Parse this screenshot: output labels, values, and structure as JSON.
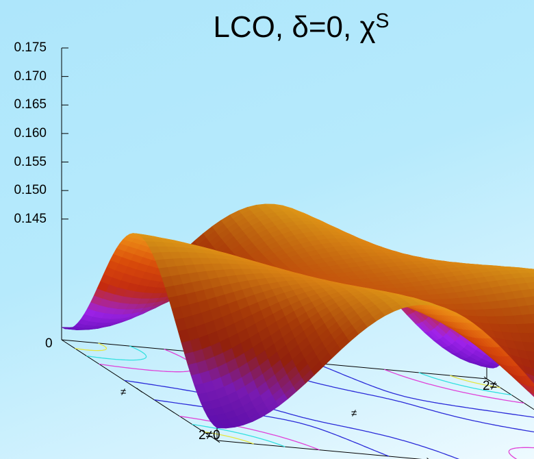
{
  "chart_data": {
    "type": "surface3d",
    "title": "LCO, δ=0, χ",
    "title_super": "S",
    "z_ticks": [
      "0.175",
      "0.170",
      "0.165",
      "0.160",
      "0.155",
      "0.150",
      "0.145"
    ],
    "base_z_label": "0",
    "x_ticks": [
      "≠",
      "2≠0"
    ],
    "y_ticks": [
      "≠",
      "2≠"
    ],
    "zlim": [
      0.135,
      0.175
    ],
    "surface": "chi_s(kx, ky) peaked at (π, π) with max ≈ 0.172, min ≈ 0.137 along the (0,0)-(2π,2π) diagonal and edge saddles near 0.148",
    "contour_levels": [
      {
        "level": 0.139,
        "color": "#e6e640"
      },
      {
        "level": 0.143,
        "color": "#33e0e0"
      },
      {
        "level": 0.149,
        "color": "#e040d8"
      },
      {
        "level": 0.16,
        "color": "#2a2ad8"
      },
      {
        "level": 0.168,
        "color": "#33cc55"
      }
    ],
    "colormap": [
      "#6a10c8",
      "#9d22e6",
      "#c02a10",
      "#d64a0a",
      "#f29016",
      "#f6d020",
      "#fff200"
    ]
  }
}
